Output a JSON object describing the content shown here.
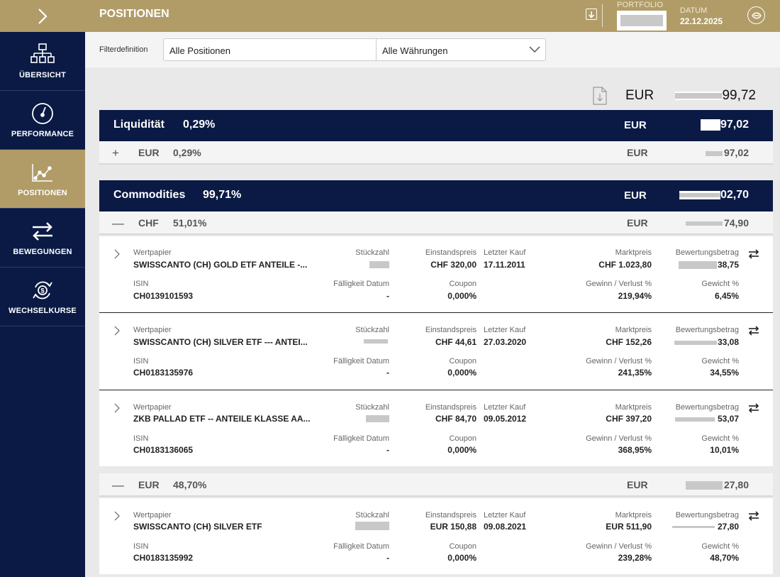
{
  "header": {
    "title": "POSITIONEN",
    "portfolio_label": "PORTFOLIO",
    "datum_label": "DATUM",
    "datum_value": "22.12.2025"
  },
  "sidebar": {
    "items": [
      {
        "label": "ÜBERSICHT",
        "icon": "sitemap-icon"
      },
      {
        "label": "PERFORMANCE",
        "icon": "gauge-icon"
      },
      {
        "label": "POSITIONEN",
        "icon": "line-chart-icon",
        "active": true
      },
      {
        "label": "BEWEGUNGEN",
        "icon": "transfer-arrows-icon"
      },
      {
        "label": "WECHSELKURSE",
        "icon": "currency-exchange-icon"
      }
    ]
  },
  "filter": {
    "label": "Filterdefinition",
    "positions_value": "Alle Positionen",
    "currency_value": "Alle Währungen"
  },
  "total": {
    "currency": "EUR",
    "value": "99,72"
  },
  "sections": {
    "liquiditaet": {
      "name": "Liquidität",
      "pct": "0,29%",
      "currency": "EUR",
      "value": "97,02",
      "sub": {
        "toggle": "+",
        "currency": "EUR",
        "pct": "0,29%",
        "val_currency": "EUR",
        "value": "97,02"
      }
    },
    "commodities": {
      "name": "Commodities",
      "pct": "99,71%",
      "currency": "EUR",
      "value": "02,70",
      "sub_chf": {
        "toggle": "—",
        "currency": "CHF",
        "pct": "51,01%",
        "val_currency": "EUR",
        "value": "74,90"
      },
      "sub_eur": {
        "toggle": "—",
        "currency": "EUR",
        "pct": "48,70%",
        "val_currency": "EUR",
        "value": "27,80"
      }
    }
  },
  "labels": {
    "wertpapier": "Wertpapier",
    "stueckzahl": "Stückzahl",
    "einstandspreis": "Einstandspreis",
    "letzter_kauf": "Letzter Kauf",
    "marktpreis": "Marktpreis",
    "bewertungsbetrag": "Bewertungsbetrag",
    "isin": "ISIN",
    "faelligkeit": "Fälligkeit Datum",
    "coupon": "Coupon",
    "gewinn": "Gewinn / Verlust %",
    "gewicht": "Gewicht %"
  },
  "positions": [
    {
      "name": "SWISSCANTO (CH) GOLD ETF ANTEILE -...",
      "einstandspreis": "CHF 320,00",
      "letzter_kauf": "17.11.2011",
      "marktpreis": "CHF 1.023,80",
      "bewertung": "38,75",
      "isin": "CH0139101593",
      "faelligkeit": "-",
      "coupon": "0,000%",
      "gewinn": "219,94%",
      "gewicht": "6,45%"
    },
    {
      "name": "SWISSCANTO (CH) SILVER ETF --- ANTEI...",
      "einstandspreis": "CHF 44,61",
      "letzter_kauf": "27.03.2020",
      "marktpreis": "CHF 152,26",
      "bewertung": "33,08",
      "isin": "CH0183135976",
      "faelligkeit": "-",
      "coupon": "0,000%",
      "gewinn": "241,35%",
      "gewicht": "34,55%"
    },
    {
      "name": "ZKB PALLAD ETF -- ANTEILE KLASSE AA...",
      "einstandspreis": "CHF 84,70",
      "letzter_kauf": "09.05.2012",
      "marktpreis": "CHF 397,20",
      "bewertung": "53,07",
      "isin": "CH0183136065",
      "faelligkeit": "-",
      "coupon": "0,000%",
      "gewinn": "368,95%",
      "gewicht": "10,01%"
    },
    {
      "name": "SWISSCANTO (CH) SILVER ETF",
      "einstandspreis": "EUR 150,88",
      "letzter_kauf": "09.08.2021",
      "marktpreis": "EUR 511,90",
      "bewertung": "27,80",
      "isin": "CH0183135992",
      "faelligkeit": "-",
      "coupon": "0,000%",
      "gewinn": "239,28%",
      "gewicht": "48,70%"
    }
  ]
}
